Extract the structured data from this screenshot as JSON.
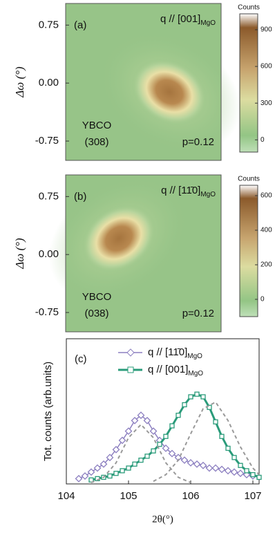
{
  "chart_data": [
    {
      "type": "heatmap",
      "label": "(a)",
      "annotation": "q // [001]",
      "annotation_subscript": "MgO",
      "sample": "YBCO",
      "reflection": "(308)",
      "doping": "p=0.12",
      "ylabel": "Δω (°)",
      "ylim": [
        -1.0,
        1.03
      ],
      "yticks": [
        {
          "value": 0.75,
          "label": "0.75"
        },
        {
          "value": 0,
          "label": "0.00"
        },
        {
          "value": -0.75,
          "label": "-0.75"
        }
      ],
      "colorbar_label": "Counts",
      "clim": [
        -100,
        1030
      ],
      "cticks": [
        0,
        300,
        600,
        900
      ]
    },
    {
      "type": "heatmap",
      "label": "(b)",
      "annotation": "q // [11̄0]",
      "annotation_subscript": "MgO",
      "sample": "YBCO",
      "reflection": "(038)",
      "doping": "p=0.12",
      "ylabel": "Δω (°)",
      "ylim": [
        -1.0,
        1.03
      ],
      "yticks": [
        {
          "value": 0.75,
          "label": "0.75"
        },
        {
          "value": 0,
          "label": "0.00"
        },
        {
          "value": -0.75,
          "label": "-0.75"
        }
      ],
      "colorbar_label": "Counts",
      "clim": [
        -100,
        660
      ],
      "cticks": [
        0,
        200,
        400,
        600
      ]
    },
    {
      "type": "line",
      "label": "(c)",
      "xlabel": "2θ(°)",
      "ylabel": "Tot. counts (arb.units)",
      "xlim": [
        104,
        107.1
      ],
      "xticks": [
        104,
        105,
        106,
        107
      ],
      "ylim": [
        0,
        1.1
      ],
      "series": [
        {
          "name": "q // [11̄0]",
          "name_subscript": "MgO",
          "color": "#8c7fc0",
          "marker": "diamond",
          "x": [
            104.2,
            104.3,
            104.4,
            104.5,
            104.6,
            104.7,
            104.8,
            104.9,
            105.0,
            105.1,
            105.2,
            105.3,
            105.4,
            105.5,
            105.6,
            105.7,
            105.8,
            105.9,
            106.0,
            106.1,
            106.2,
            106.3,
            106.4,
            106.5,
            106.6,
            106.7,
            106.8,
            106.9,
            107.0
          ],
          "values": [
            0.04,
            0.06,
            0.09,
            0.12,
            0.15,
            0.2,
            0.26,
            0.33,
            0.4,
            0.48,
            0.52,
            0.48,
            0.4,
            0.33,
            0.27,
            0.23,
            0.2,
            0.18,
            0.16,
            0.15,
            0.14,
            0.12,
            0.12,
            0.11,
            0.1,
            0.09,
            0.08,
            0.07,
            0.06
          ]
        },
        {
          "name": "q // [001]",
          "name_subscript": "MgO",
          "color": "#2a9b7a",
          "marker": "square",
          "x": [
            104.4,
            104.5,
            104.6,
            104.7,
            104.8,
            104.9,
            105.0,
            105.1,
            105.2,
            105.3,
            105.4,
            105.5,
            105.6,
            105.7,
            105.8,
            105.9,
            106.0,
            106.1,
            106.2,
            106.3,
            106.4,
            106.5,
            106.6,
            106.7,
            106.8,
            106.9,
            107.0,
            107.1
          ],
          "values": [
            0.03,
            0.04,
            0.05,
            0.06,
            0.08,
            0.1,
            0.12,
            0.15,
            0.18,
            0.21,
            0.25,
            0.3,
            0.36,
            0.44,
            0.52,
            0.6,
            0.66,
            0.68,
            0.66,
            0.58,
            0.47,
            0.36,
            0.27,
            0.2,
            0.14,
            0.1,
            0.07,
            0.05
          ]
        },
        {
          "color": "#999999",
          "style": "dashed",
          "x": [
            104.4,
            104.6,
            104.8,
            105.0,
            105.2,
            105.4,
            105.6,
            105.8,
            106.0
          ],
          "values": [
            0.01,
            0.05,
            0.16,
            0.35,
            0.45,
            0.35,
            0.16,
            0.05,
            0.01
          ]
        },
        {
          "color": "#999999",
          "style": "dashed",
          "x": [
            105.4,
            105.6,
            105.8,
            106.0,
            106.2,
            106.4,
            106.6,
            106.8,
            107.0,
            107.1
          ],
          "values": [
            0.02,
            0.07,
            0.18,
            0.38,
            0.57,
            0.62,
            0.48,
            0.28,
            0.12,
            0.07
          ]
        }
      ]
    }
  ]
}
